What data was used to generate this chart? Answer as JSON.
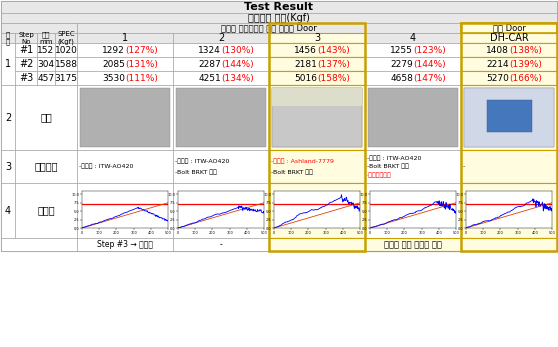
{
  "title": "Test Result",
  "subtitle": "엽문강도 시험(Kgf)",
  "group_header1": "복합재 하이브리드 도어 시제품 Door",
  "group_header2": "양산 Door",
  "col_headers": [
    "1",
    "2",
    "3",
    "4",
    "DH-CAR"
  ],
  "steps": [
    "#1",
    "#2",
    "#3"
  ],
  "displacements": [
    152,
    304,
    457
  ],
  "specs": [
    1020,
    1588,
    3175
  ],
  "data": {
    "1": {
      "#1": [
        1292,
        127
      ],
      "#2": [
        2085,
        131
      ],
      "#3": [
        3530,
        111
      ]
    },
    "2": {
      "#1": [
        1324,
        130
      ],
      "#2": [
        2287,
        144
      ],
      "#3": [
        4251,
        134
      ]
    },
    "3": {
      "#1": [
        1456,
        143
      ],
      "#2": [
        2181,
        137
      ],
      "#3": [
        5016,
        158
      ]
    },
    "4": {
      "#1": [
        1255,
        123
      ],
      "#2": [
        2279,
        144
      ],
      "#3": [
        4658,
        147
      ]
    },
    "DH-CAR": {
      "#1": [
        1408,
        138
      ],
      "#2": [
        2214,
        139
      ],
      "#3": [
        5270,
        166
      ]
    }
  },
  "adhesive_info": {
    "1": [
      "-접착제 : ITW-AO420"
    ],
    "2": [
      "-접착제 : ITW-AO420",
      "-Bolt BRKT 보완"
    ],
    "3": [
      "-접착제 : Ashland-7779",
      "-Bolt BRKT 보완"
    ],
    "4": [
      "-접착제 : ITW-AO420",
      "-Bolt BRKT 보완",
      "-블라스틱용접"
    ],
    "DH-CAR": [
      "-"
    ]
  },
  "adhesive_red": {
    "1": [
      false
    ],
    "2": [
      false,
      false
    ],
    "3": [
      true,
      false
    ],
    "4": [
      false,
      false,
      true
    ],
    "DH-CAR": [
      false
    ]
  },
  "bottom_notes": {
    "1": "Step #3 → 불안정",
    "2": "-",
    "merged_34DHCAR": "유사한 파괴 양상을 보임"
  },
  "highlight_border": "#C8A000",
  "bg_color": "#FFFFFF",
  "header_bg": "#E0E0E0",
  "red_color": "#FF0000",
  "blue_color": "#0000CC"
}
